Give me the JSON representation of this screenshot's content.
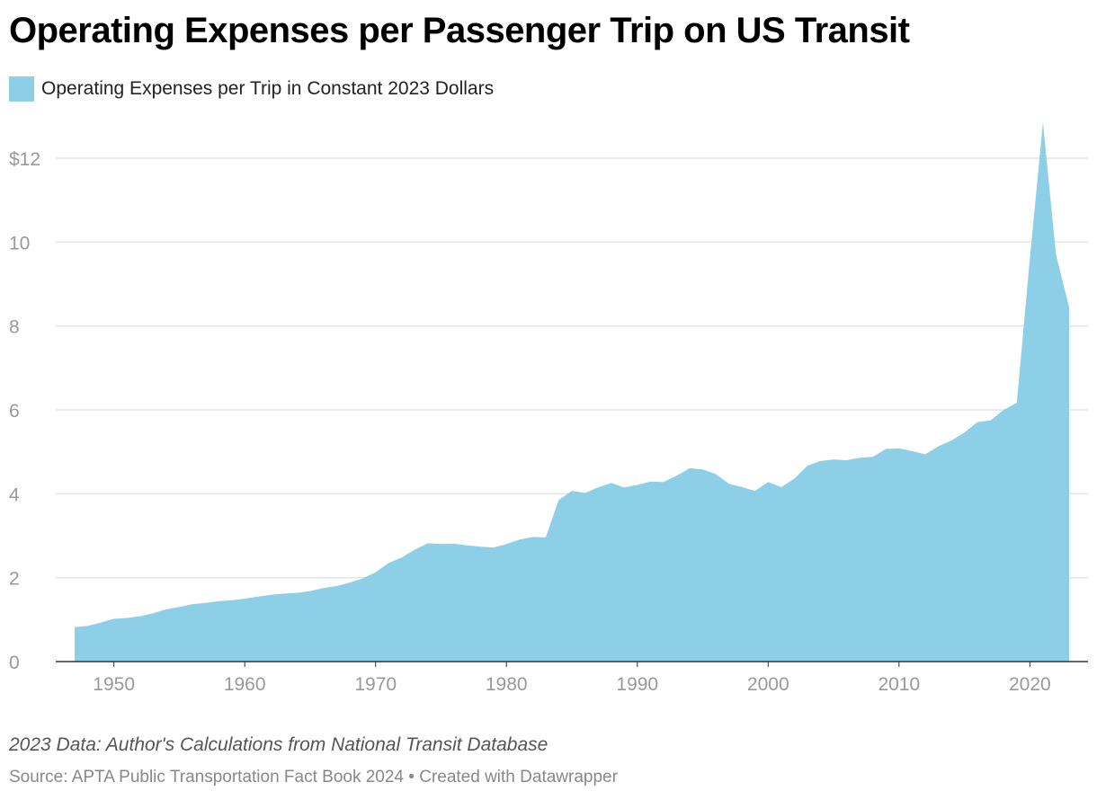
{
  "chart_data": {
    "type": "area",
    "title": "Operating Expenses per Passenger Trip on US Transit",
    "legend": [
      {
        "label": "Operating Expenses per Trip in Constant 2023 Dollars",
        "color": "#8dcfe6"
      }
    ],
    "legend_placement": "top-left",
    "xlabel": "",
    "ylabel": "",
    "xlim": [
      1947,
      2023
    ],
    "ylim": [
      0,
      12
    ],
    "y_ticks": [
      {
        "v": 0,
        "label": "0"
      },
      {
        "v": 2,
        "label": "2"
      },
      {
        "v": 4,
        "label": "4"
      },
      {
        "v": 6,
        "label": "6"
      },
      {
        "v": 8,
        "label": "8"
      },
      {
        "v": 10,
        "label": "10"
      },
      {
        "v": 12,
        "label": "$12"
      }
    ],
    "x_ticks": [
      {
        "v": 1950,
        "label": "1950"
      },
      {
        "v": 1960,
        "label": "1960"
      },
      {
        "v": 1970,
        "label": "1970"
      },
      {
        "v": 1980,
        "label": "1980"
      },
      {
        "v": 1990,
        "label": "1990"
      },
      {
        "v": 2000,
        "label": "2000"
      },
      {
        "v": 2010,
        "label": "2010"
      },
      {
        "v": 2020,
        "label": "2020"
      }
    ],
    "grid": true,
    "x": [
      1947,
      1948,
      1949,
      1950,
      1951,
      1952,
      1953,
      1954,
      1955,
      1956,
      1957,
      1958,
      1959,
      1960,
      1961,
      1962,
      1963,
      1964,
      1965,
      1966,
      1967,
      1968,
      1969,
      1970,
      1971,
      1972,
      1973,
      1974,
      1975,
      1976,
      1977,
      1978,
      1979,
      1980,
      1981,
      1982,
      1983,
      1984,
      1985,
      1986,
      1987,
      1988,
      1989,
      1990,
      1991,
      1992,
      1993,
      1994,
      1995,
      1996,
      1997,
      1998,
      1999,
      2000,
      2001,
      2002,
      2003,
      2004,
      2005,
      2006,
      2007,
      2008,
      2009,
      2010,
      2011,
      2012,
      2013,
      2014,
      2015,
      2016,
      2017,
      2018,
      2019,
      2020,
      2021,
      2022,
      2023
    ],
    "values": [
      0.82,
      0.85,
      0.93,
      1.02,
      1.04,
      1.08,
      1.15,
      1.25,
      1.3,
      1.37,
      1.4,
      1.44,
      1.46,
      1.5,
      1.55,
      1.59,
      1.62,
      1.64,
      1.68,
      1.75,
      1.8,
      1.88,
      1.98,
      2.13,
      2.35,
      2.48,
      2.67,
      2.82,
      2.8,
      2.81,
      2.77,
      2.74,
      2.72,
      2.8,
      2.91,
      2.97,
      2.96,
      3.85,
      4.07,
      4.02,
      4.15,
      4.26,
      4.15,
      4.21,
      4.29,
      4.28,
      4.43,
      4.61,
      4.58,
      4.47,
      4.24,
      4.16,
      4.07,
      4.28,
      4.16,
      4.36,
      4.67,
      4.78,
      4.82,
      4.8,
      4.86,
      4.88,
      5.07,
      5.08,
      5.02,
      4.94,
      5.13,
      5.27,
      5.46,
      5.71,
      5.75,
      6.0,
      6.17,
      9.6,
      12.85,
      9.7,
      8.45
    ]
  },
  "footer": {
    "note": "2023 Data: Author's Calculations from National Transit Database",
    "source": "Source: APTA Public Transportation Fact Book 2024 • Created with Datawrapper"
  }
}
